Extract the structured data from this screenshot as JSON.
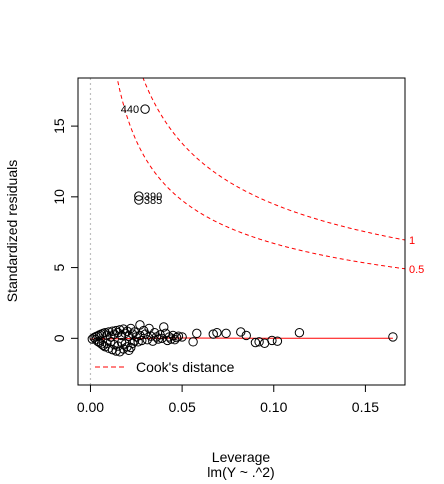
{
  "chart_data": {
    "type": "scatter",
    "title": "",
    "xlabel": "Leverage",
    "subtitle": "lm(Y ~ .^2)",
    "ylabel": "Standardized residuals",
    "xlim": [
      -0.0068,
      0.1716
    ],
    "ylim": [
      -3.3,
      18.4
    ],
    "x_ticks": [
      {
        "value": 0,
        "label": "0.00"
      },
      {
        "value": 0.05,
        "label": "0.05"
      },
      {
        "value": 0.1,
        "label": "0.10"
      },
      {
        "value": 0.15,
        "label": "0.15"
      }
    ],
    "y_ticks": [
      {
        "value": 0,
        "label": "0"
      },
      {
        "value": 5,
        "label": "5"
      },
      {
        "value": 10,
        "label": "10"
      },
      {
        "value": 15,
        "label": "15"
      }
    ],
    "points": [
      {
        "x": 0.0298,
        "y": 16.2
      },
      {
        "x": 0.0264,
        "y": 10.05
      },
      {
        "x": 0.0264,
        "y": 9.78
      },
      {
        "x": 0.001,
        "y": -0.05
      },
      {
        "x": 0.002,
        "y": 0.05
      },
      {
        "x": 0.003,
        "y": -0.1
      },
      {
        "x": 0.003,
        "y": 0.12
      },
      {
        "x": 0.004,
        "y": -0.22
      },
      {
        "x": 0.004,
        "y": 0.18
      },
      {
        "x": 0.005,
        "y": -0.3
      },
      {
        "x": 0.005,
        "y": 0.25
      },
      {
        "x": 0.006,
        "y": -0.4
      },
      {
        "x": 0.006,
        "y": 0.3
      },
      {
        "x": 0.007,
        "y": -0.5
      },
      {
        "x": 0.007,
        "y": 0.35
      },
      {
        "x": 0.008,
        "y": -0.6
      },
      {
        "x": 0.008,
        "y": 0.4
      },
      {
        "x": 0.009,
        "y": -0.35
      },
      {
        "x": 0.009,
        "y": 0.22
      },
      {
        "x": 0.01,
        "y": -0.7
      },
      {
        "x": 0.01,
        "y": 0.45
      },
      {
        "x": 0.011,
        "y": -0.25
      },
      {
        "x": 0.011,
        "y": 0.1
      },
      {
        "x": 0.012,
        "y": -0.8
      },
      {
        "x": 0.012,
        "y": 0.5
      },
      {
        "x": 0.013,
        "y": -0.45
      },
      {
        "x": 0.013,
        "y": 0.3
      },
      {
        "x": 0.014,
        "y": -0.9
      },
      {
        "x": 0.014,
        "y": 0.55
      },
      {
        "x": 0.015,
        "y": -0.55
      },
      {
        "x": 0.015,
        "y": 0.4
      },
      {
        "x": 0.016,
        "y": -0.95
      },
      {
        "x": 0.016,
        "y": 0.6
      },
      {
        "x": 0.017,
        "y": -0.3
      },
      {
        "x": 0.017,
        "y": 0.2
      },
      {
        "x": 0.018,
        "y": -0.75
      },
      {
        "x": 0.018,
        "y": 0.65
      },
      {
        "x": 0.019,
        "y": -0.4
      },
      {
        "x": 0.019,
        "y": 0.35
      },
      {
        "x": 0.02,
        "y": -0.6
      },
      {
        "x": 0.02,
        "y": 0.5
      },
      {
        "x": 0.021,
        "y": -0.85
      },
      {
        "x": 0.021,
        "y": 0.15
      },
      {
        "x": 0.022,
        "y": -0.65
      },
      {
        "x": 0.022,
        "y": 0.7
      },
      {
        "x": 0.023,
        "y": -0.35
      },
      {
        "x": 0.023,
        "y": 0.3
      },
      {
        "x": 0.024,
        "y": -0.2
      },
      {
        "x": 0.024,
        "y": 0.45
      },
      {
        "x": 0.025,
        "y": 0.1
      },
      {
        "x": 0.026,
        "y": -0.25
      },
      {
        "x": 0.027,
        "y": 0.95
      },
      {
        "x": 0.027,
        "y": 0.2
      },
      {
        "x": 0.028,
        "y": -0.15
      },
      {
        "x": 0.029,
        "y": 0.55
      },
      {
        "x": 0.03,
        "y": 0.3
      },
      {
        "x": 0.031,
        "y": -0.1
      },
      {
        "x": 0.032,
        "y": 0.7
      },
      {
        "x": 0.033,
        "y": 0.15
      },
      {
        "x": 0.034,
        "y": -0.2
      },
      {
        "x": 0.035,
        "y": 0.4
      },
      {
        "x": 0.036,
        "y": 0.1
      },
      {
        "x": 0.037,
        "y": -0.05
      },
      {
        "x": 0.038,
        "y": 0.25
      },
      {
        "x": 0.039,
        "y": 0.0
      },
      {
        "x": 0.04,
        "y": 0.8
      },
      {
        "x": 0.041,
        "y": 0.35
      },
      {
        "x": 0.042,
        "y": -0.15
      },
      {
        "x": 0.043,
        "y": 0.1
      },
      {
        "x": 0.044,
        "y": -0.05
      },
      {
        "x": 0.045,
        "y": 0.2
      },
      {
        "x": 0.046,
        "y": -0.1
      },
      {
        "x": 0.047,
        "y": 0.05
      },
      {
        "x": 0.048,
        "y": 0.15
      },
      {
        "x": 0.05,
        "y": 0.1
      },
      {
        "x": 0.056,
        "y": -0.25
      },
      {
        "x": 0.058,
        "y": 0.35
      },
      {
        "x": 0.067,
        "y": 0.3
      },
      {
        "x": 0.069,
        "y": 0.4
      },
      {
        "x": 0.074,
        "y": 0.35
      },
      {
        "x": 0.082,
        "y": 0.45
      },
      {
        "x": 0.085,
        "y": 0.2
      },
      {
        "x": 0.09,
        "y": -0.3
      },
      {
        "x": 0.092,
        "y": -0.25
      },
      {
        "x": 0.095,
        "y": -0.35
      },
      {
        "x": 0.099,
        "y": -0.15
      },
      {
        "x": 0.102,
        "y": -0.2
      },
      {
        "x": 0.114,
        "y": 0.4
      },
      {
        "x": 0.165,
        "y": 0.1
      }
    ],
    "point_labels": [
      {
        "text": "440",
        "x": 0.0298,
        "y": 16.2,
        "side": "left"
      },
      {
        "text": "390",
        "x": 0.0264,
        "y": 10.05,
        "side": "right"
      },
      {
        "text": "385",
        "x": 0.0264,
        "y": 9.78,
        "side": "right"
      }
    ],
    "cooks_contours": [
      {
        "level": 1,
        "label": "1",
        "p": 10
      },
      {
        "level": 0.5,
        "label": "0.5",
        "p": 10
      }
    ],
    "smooth_line": [
      [
        0,
        -0.05
      ],
      [
        0.05,
        0.02
      ],
      [
        0.1,
        0.0
      ],
      [
        0.165,
        0.0
      ]
    ],
    "zero_reference_line": {
      "x": 0
    },
    "legend": {
      "position": "bottom-left",
      "label": "Cook's distance",
      "style": "dashed",
      "color": "#ff0000"
    },
    "colors": {
      "points": "#000000",
      "smooth": "#ff0000",
      "cooks": "#ff0000",
      "ref": "#bebebe"
    }
  }
}
